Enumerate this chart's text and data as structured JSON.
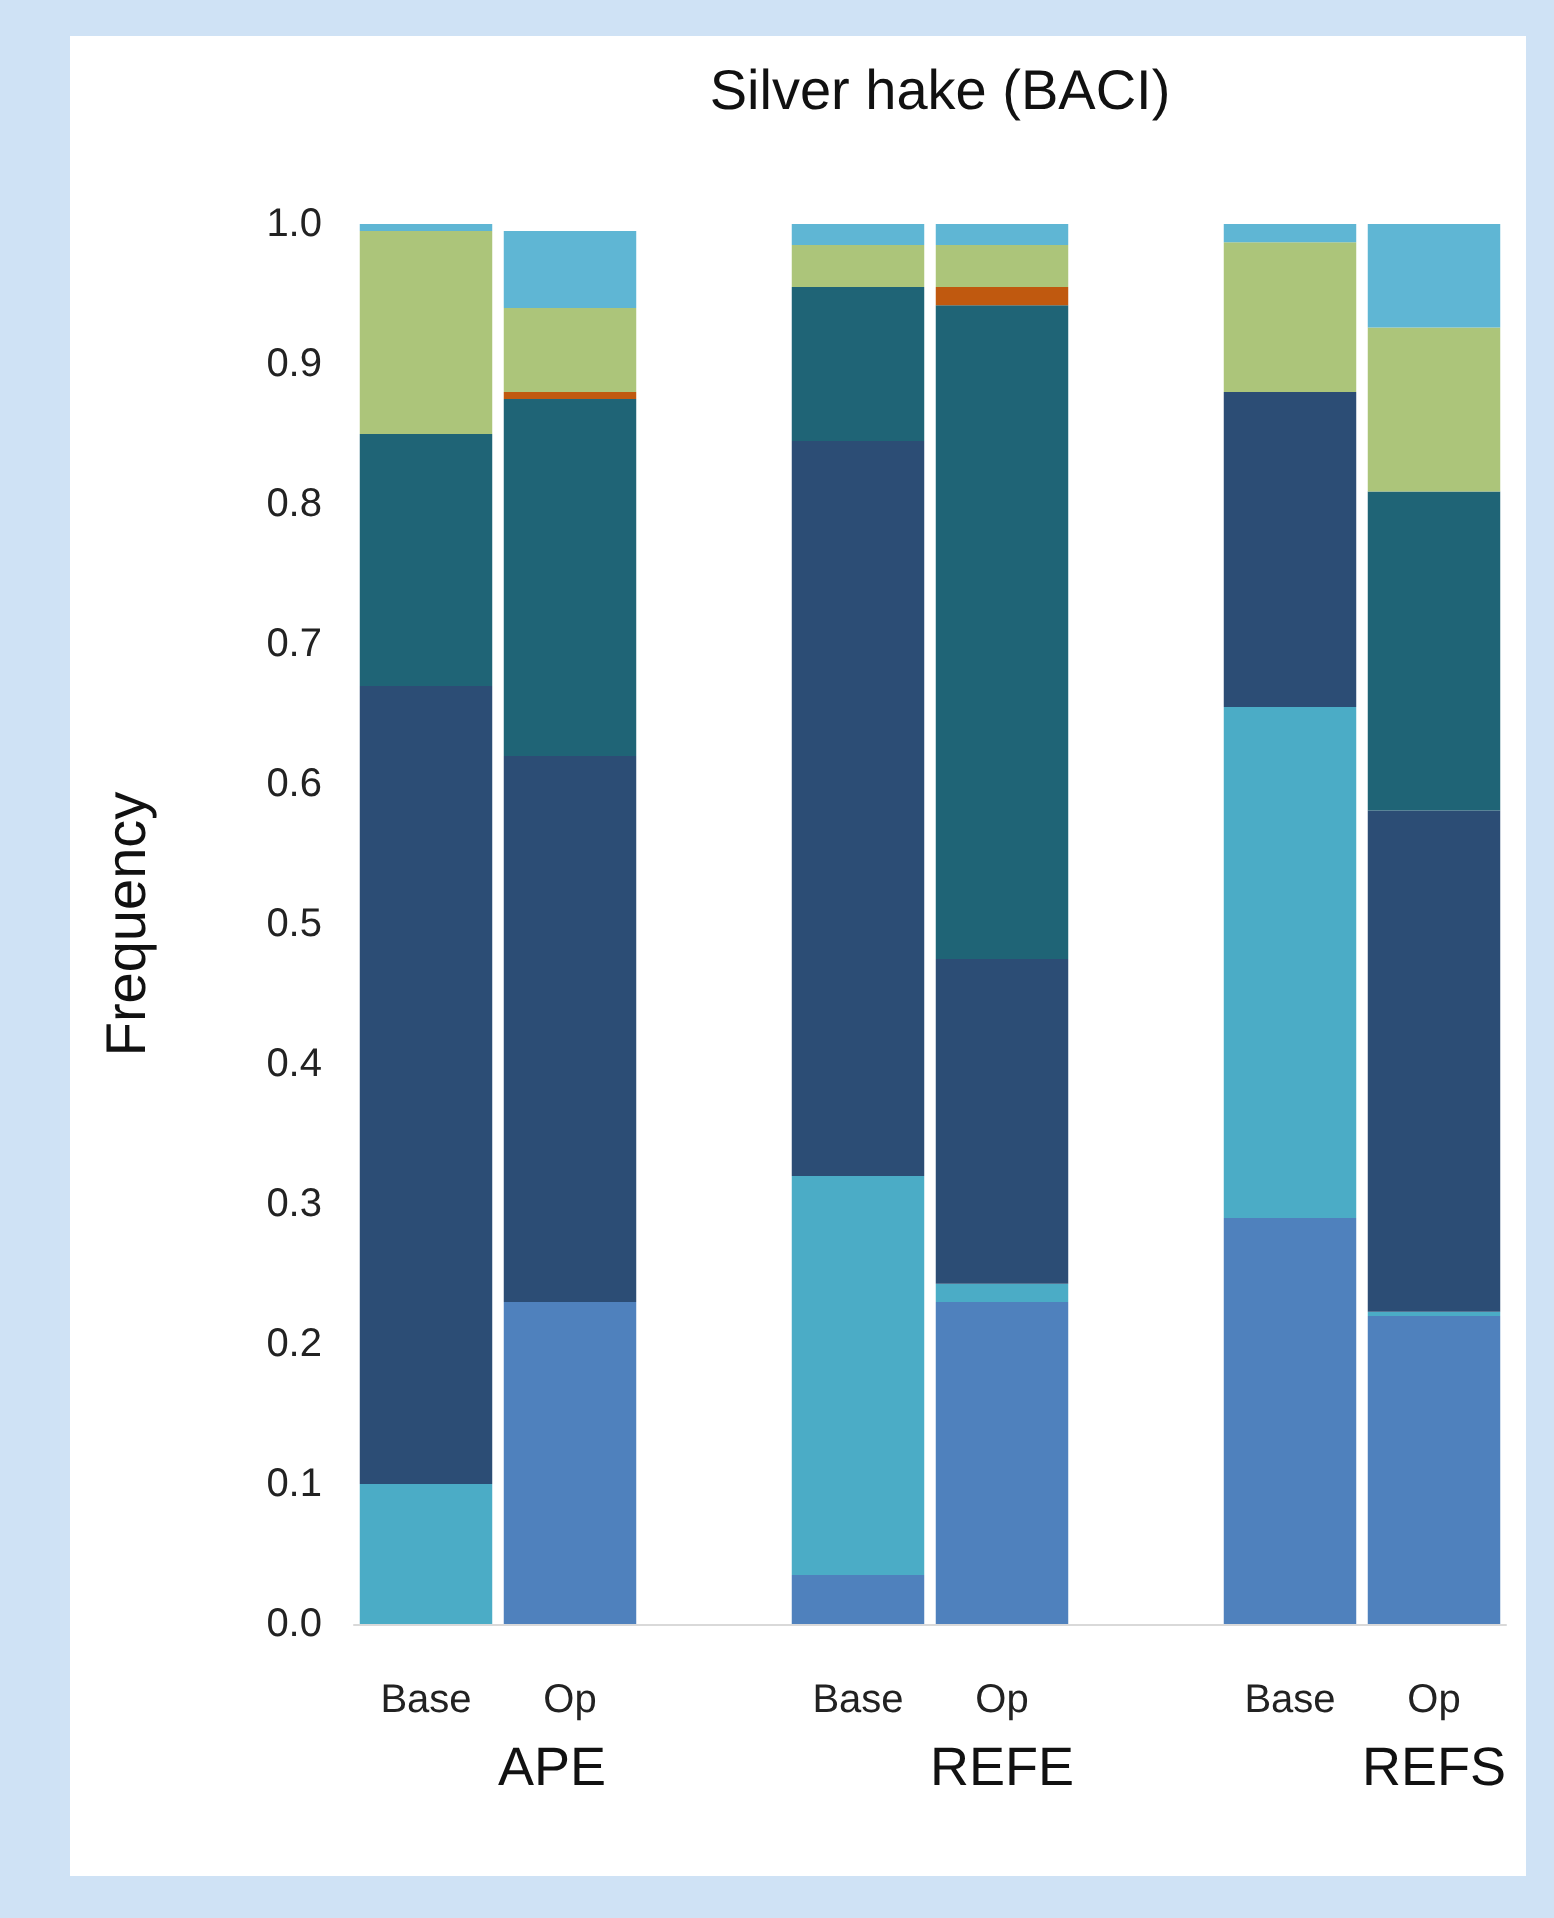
{
  "chart_data": {
    "type": "bar",
    "stacked": true,
    "title": "Silver hake (BACI)",
    "ylabel": "Frequency",
    "categories": [
      "Base",
      "Op",
      null,
      "Base",
      "Op",
      null,
      "Base",
      "Op"
    ],
    "series": [
      {
        "color": "#4f81bd",
        "values": [
          0,
          0.23,
          null,
          0.035,
          0.23,
          null,
          0.29,
          0.22
        ]
      },
      {
        "color": "#4bacc6",
        "values": [
          0.1,
          0,
          null,
          0.285,
          0.013,
          null,
          0.365,
          0.003
        ]
      },
      {
        "color": "#2c4d75",
        "values": [
          0.57,
          0.39,
          null,
          0.525,
          0.232,
          null,
          0.225,
          0.358
        ]
      },
      {
        "color": "#1f6476",
        "values": [
          0.18,
          0.255,
          null,
          0.11,
          0.467,
          null,
          0,
          0.228
        ]
      },
      {
        "color": "#c0590f",
        "values": [
          0,
          0.005,
          null,
          0,
          0.013,
          null,
          0,
          0
        ]
      },
      {
        "color": "#acc57a",
        "values": [
          0.145,
          0.06,
          null,
          0.03,
          0.03,
          null,
          0.107,
          0.117
        ]
      },
      {
        "color": "#5fb6d4",
        "values": [
          0.005,
          0.055,
          null,
          0.015,
          0.015,
          null,
          0.013,
          0.075
        ]
      }
    ],
    "ylim": [
      0,
      1
    ],
    "yticks": [
      {
        "value": 0,
        "label": "0.0"
      },
      {
        "value": 0.1,
        "label": "0.1"
      },
      {
        "value": 0.2,
        "label": "0.2"
      },
      {
        "value": 0.3,
        "label": "0.3"
      },
      {
        "value": 0.4,
        "label": "0.4"
      },
      {
        "value": 0.5,
        "label": "0.5"
      },
      {
        "value": 0.6,
        "label": "0.6"
      },
      {
        "value": 0.7,
        "label": "0.7"
      },
      {
        "value": 0.8,
        "label": "0.8"
      },
      {
        "value": 0.9,
        "label": "0.9"
      },
      {
        "value": 1,
        "label": "1.0"
      }
    ],
    "annotations": [
      "APE",
      "REFE",
      "REFS"
    ],
    "grid": false,
    "legend": false
  }
}
